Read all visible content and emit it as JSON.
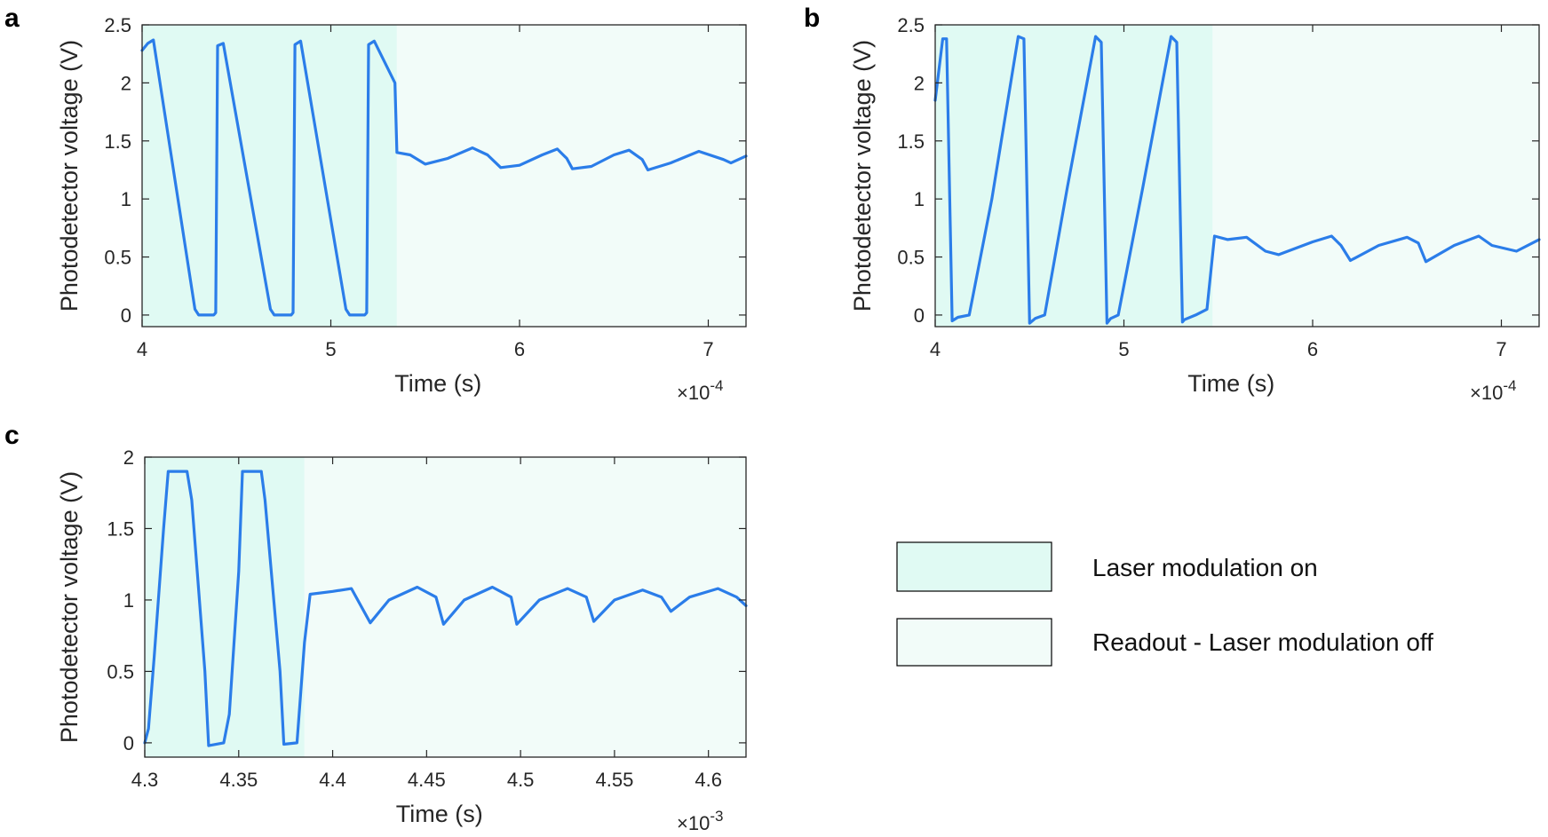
{
  "colors": {
    "line": "#2b7de9",
    "modulation_on": "#e0faf3",
    "readout": "#f2fcf9",
    "axis": "#262626"
  },
  "legend": {
    "items": [
      {
        "label": "Laser modulation on",
        "color": "#e0faf3"
      },
      {
        "label": "Readout - Laser modulation off",
        "color": "#f2fcf9"
      }
    ]
  },
  "chart_data": [
    {
      "panel": "a",
      "type": "line",
      "xlabel": "Time (s)",
      "ylabel": "Photodetector voltage (V)",
      "x_multiplier": "×10",
      "x_exponent": "-4",
      "xlim": [
        4.0,
        7.2
      ],
      "ylim": [
        -0.1,
        2.5
      ],
      "xticks": [
        4,
        5,
        6,
        7
      ],
      "yticks": [
        0,
        0.5,
        1,
        1.5,
        2,
        2.5
      ],
      "ytick_labels": [
        "0",
        "0.5",
        "1",
        "1.5",
        "2",
        "2.5"
      ],
      "modulation_on_range": [
        4.0,
        5.35
      ],
      "readout_range": [
        5.35,
        7.2
      ],
      "series": [
        {
          "name": "photodetector",
          "x": [
            4.0,
            4.03,
            4.06,
            4.28,
            4.3,
            4.38,
            4.39,
            4.4,
            4.43,
            4.68,
            4.7,
            4.79,
            4.8,
            4.81,
            4.84,
            5.08,
            5.1,
            5.18,
            5.19,
            5.2,
            5.23,
            5.34,
            5.35,
            5.42,
            5.5,
            5.62,
            5.75,
            5.83,
            5.9,
            6.0,
            6.12,
            6.2,
            6.25,
            6.28,
            6.38,
            6.5,
            6.58,
            6.65,
            6.68,
            6.8,
            6.95,
            7.08,
            7.12,
            7.2
          ],
          "y": [
            2.28,
            2.34,
            2.37,
            0.05,
            0.0,
            0.0,
            0.02,
            2.32,
            2.34,
            0.05,
            0.0,
            0.0,
            0.02,
            2.33,
            2.36,
            0.05,
            0.0,
            0.0,
            0.02,
            2.33,
            2.36,
            2.0,
            1.4,
            1.38,
            1.3,
            1.35,
            1.44,
            1.38,
            1.27,
            1.29,
            1.38,
            1.43,
            1.35,
            1.26,
            1.28,
            1.38,
            1.42,
            1.34,
            1.25,
            1.31,
            1.41,
            1.34,
            1.31,
            1.37
          ]
        }
      ]
    },
    {
      "panel": "b",
      "type": "line",
      "xlabel": "Time (s)",
      "ylabel": "Photodetector voltage (V)",
      "x_multiplier": "×10",
      "x_exponent": "-4",
      "xlim": [
        4.0,
        7.2
      ],
      "ylim": [
        -0.1,
        2.5
      ],
      "xticks": [
        4,
        5,
        6,
        7
      ],
      "yticks": [
        0,
        0.5,
        1,
        1.5,
        2,
        2.5
      ],
      "ytick_labels": [
        "0",
        "0.5",
        "1",
        "1.5",
        "2",
        "2.5"
      ],
      "modulation_on_range": [
        4.0,
        5.47
      ],
      "readout_range": [
        5.47,
        7.2
      ],
      "series": [
        {
          "name": "photodetector",
          "x": [
            4.0,
            4.04,
            4.06,
            4.09,
            4.12,
            4.18,
            4.3,
            4.44,
            4.47,
            4.5,
            4.53,
            4.58,
            4.7,
            4.85,
            4.88,
            4.91,
            4.93,
            4.97,
            5.1,
            5.25,
            5.28,
            5.31,
            5.32,
            5.38,
            5.44,
            5.48,
            5.55,
            5.65,
            5.75,
            5.82,
            6.0,
            6.1,
            6.15,
            6.2,
            6.35,
            6.5,
            6.56,
            6.6,
            6.75,
            6.88,
            6.95,
            7.08,
            7.2
          ],
          "y": [
            1.85,
            2.38,
            2.38,
            -0.05,
            -0.02,
            0.0,
            1.0,
            2.4,
            2.38,
            -0.07,
            -0.03,
            0.0,
            1.1,
            2.4,
            2.35,
            -0.07,
            -0.03,
            0.0,
            1.1,
            2.4,
            2.35,
            -0.06,
            -0.04,
            0.0,
            0.05,
            0.68,
            0.65,
            0.67,
            0.55,
            0.52,
            0.63,
            0.68,
            0.6,
            0.47,
            0.6,
            0.67,
            0.62,
            0.46,
            0.6,
            0.68,
            0.6,
            0.55,
            0.65
          ]
        }
      ]
    },
    {
      "panel": "c",
      "type": "line",
      "xlabel": "Time (s)",
      "ylabel": "Photodetector voltage (V)",
      "x_multiplier": "×10",
      "x_exponent": "-3",
      "xlim": [
        4.3,
        4.62
      ],
      "ylim": [
        -0.1,
        2.0
      ],
      "xticks": [
        4.3,
        4.35,
        4.4,
        4.45,
        4.5,
        4.55,
        4.6
      ],
      "xtick_labels": [
        "4.3",
        "4.35",
        "4.4",
        "4.45",
        "4.5",
        "4.55",
        "4.6"
      ],
      "yticks": [
        0,
        0.5,
        1,
        1.5,
        2
      ],
      "ytick_labels": [
        "0",
        "0.5",
        "1",
        "1.5",
        "2"
      ],
      "modulation_on_range": [
        4.3,
        4.385
      ],
      "readout_range": [
        4.385,
        4.62
      ],
      "series": [
        {
          "name": "photodetector",
          "x": [
            4.3,
            4.302,
            4.305,
            4.31,
            4.3125,
            4.3225,
            4.325,
            4.332,
            4.334,
            4.342,
            4.345,
            4.35,
            4.352,
            4.362,
            4.364,
            4.372,
            4.374,
            4.381,
            4.385,
            4.388,
            4.4,
            4.41,
            4.42,
            4.43,
            4.445,
            4.455,
            4.459,
            4.47,
            4.485,
            4.495,
            4.498,
            4.51,
            4.525,
            4.535,
            4.539,
            4.55,
            4.565,
            4.575,
            4.58,
            4.59,
            4.605,
            4.615,
            4.62
          ],
          "y": [
            0.0,
            0.1,
            0.6,
            1.5,
            1.9,
            1.9,
            1.7,
            0.5,
            -0.02,
            0.0,
            0.2,
            1.2,
            1.9,
            1.9,
            1.7,
            0.5,
            -0.01,
            0.0,
            0.7,
            1.04,
            1.06,
            1.08,
            0.84,
            1.0,
            1.09,
            1.02,
            0.83,
            1.0,
            1.09,
            1.02,
            0.83,
            1.0,
            1.08,
            1.02,
            0.85,
            1.0,
            1.07,
            1.02,
            0.92,
            1.02,
            1.08,
            1.02,
            0.96
          ]
        }
      ]
    }
  ]
}
